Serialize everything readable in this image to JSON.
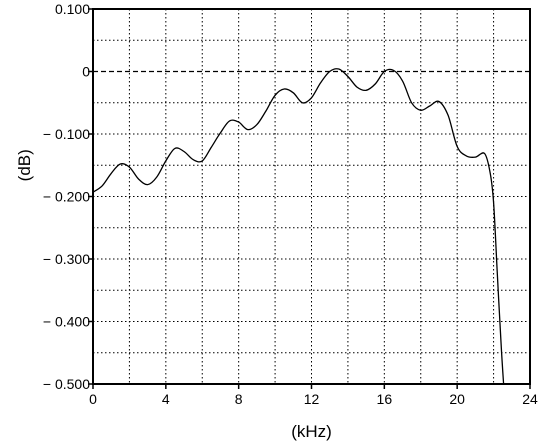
{
  "chart_data": {
    "type": "line",
    "title": "",
    "xlabel": "(kHz)",
    "ylabel": "(dB)",
    "xlim": [
      0,
      24
    ],
    "ylim": [
      -0.5,
      0.1
    ],
    "grid": true,
    "x_ticks": [
      0,
      4,
      8,
      12,
      16,
      20,
      24
    ],
    "x_tick_labels": [
      "0",
      "4",
      "8",
      "12",
      "16",
      "20",
      "24"
    ],
    "y_ticks": [
      0.1,
      0,
      -0.1,
      -0.2,
      -0.3,
      -0.4,
      -0.5
    ],
    "y_tick_labels": [
      "0.100",
      "0",
      "− 0.100",
      "− 0.200",
      "− 0.300",
      "− 0.400",
      "− 0.500"
    ],
    "reference_line": {
      "y": 0,
      "style": "dashed"
    },
    "series": [
      {
        "x": [
          0,
          0.5,
          1.0,
          1.5,
          2.0,
          2.5,
          3.0,
          3.5,
          4.0,
          4.5,
          5.0,
          5.5,
          6.0,
          6.5,
          7.0,
          7.5,
          8.0,
          8.5,
          9.0,
          9.5,
          10.0,
          10.5,
          11.0,
          11.5,
          12.0,
          12.5,
          13.0,
          13.5,
          14.0,
          14.5,
          15.0,
          15.5,
          16.0,
          16.5,
          17.0,
          17.5,
          18.0,
          18.5,
          19.0,
          19.5,
          20.0,
          20.5,
          21.0,
          21.5,
          21.8,
          22.0,
          22.2,
          22.4,
          22.55
        ],
        "values": [
          -0.193,
          -0.183,
          -0.163,
          -0.148,
          -0.153,
          -0.172,
          -0.181,
          -0.169,
          -0.143,
          -0.123,
          -0.128,
          -0.141,
          -0.143,
          -0.121,
          -0.098,
          -0.079,
          -0.081,
          -0.093,
          -0.085,
          -0.063,
          -0.038,
          -0.028,
          -0.034,
          -0.05,
          -0.042,
          -0.018,
          0.0,
          0.004,
          -0.008,
          -0.025,
          -0.03,
          -0.02,
          0.0,
          0.002,
          -0.015,
          -0.05,
          -0.062,
          -0.055,
          -0.048,
          -0.07,
          -0.12,
          -0.135,
          -0.137,
          -0.131,
          -0.16,
          -0.21,
          -0.32,
          -0.43,
          -0.5
        ]
      }
    ]
  }
}
